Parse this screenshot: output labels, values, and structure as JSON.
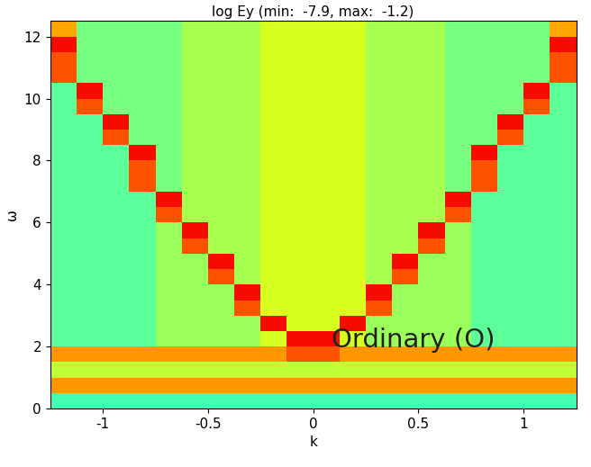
{
  "chart_data": {
    "type": "heatmap",
    "title": "log Ey (min:  -7.9, max:  -1.2)",
    "x_label": "k",
    "y_label": "ω",
    "annotation": "Ordinary (O)",
    "xlim": [
      -1.25,
      1.25
    ],
    "xticks": [
      -1,
      -0.5,
      0,
      0.5,
      1
    ],
    "ylim": [
      0,
      12.5
    ],
    "yticks": [
      0,
      2,
      4,
      6,
      8,
      10,
      12
    ],
    "color": "jet",
    "clim": [
      -7.9,
      -1.2
    ],
    "k_edges": [
      -1.25,
      -1.125,
      -1.0,
      -0.875,
      -0.75,
      -0.625,
      -0.5,
      -0.375,
      -0.25,
      -0.125,
      0,
      0.125,
      0.25,
      0.375,
      0.5,
      0.625,
      0.75,
      0.875,
      1.0,
      1.125,
      1.25
    ],
    "omega_edges": [
      0,
      0.5,
      1.0,
      1.5,
      2.0,
      2.5,
      3.0,
      3.5,
      4.0,
      4.5,
      5.0,
      5.5,
      6.0,
      6.5,
      7.0,
      7.5,
      8.0,
      8.5,
      9.0,
      9.5,
      10.0,
      10.5,
      11.0,
      11.5,
      12.0,
      12.5
    ],
    "cells": [
      [
        -5.0,
        -5.0,
        -5.0,
        -5.0,
        -5.0,
        -5.0,
        -5.0,
        -5.0,
        -5.0,
        -5.0,
        -5.0,
        -5.0,
        -5.0,
        -5.0,
        -5.0,
        -5.0,
        -5.0,
        -5.0,
        -5.0,
        -5.0
      ],
      [
        -2.9,
        -2.9,
        -2.9,
        -2.9,
        -2.9,
        -2.9,
        -2.9,
        -2.9,
        -2.9,
        -2.9,
        -2.9,
        -2.9,
        -2.9,
        -2.9,
        -2.9,
        -2.9,
        -2.9,
        -2.9,
        -2.9,
        -2.9
      ],
      [
        -4.0,
        -4.0,
        -4.0,
        -4.0,
        -4.0,
        -4.0,
        -4.0,
        -4.0,
        -4.0,
        -4.0,
        -4.0,
        -4.0,
        -4.0,
        -4.0,
        -4.0,
        -4.0,
        -4.0,
        -4.0,
        -4.0,
        -4.0
      ],
      [
        -2.9,
        -2.9,
        -2.9,
        -2.9,
        -2.9,
        -2.9,
        -2.9,
        -2.9,
        -2.9,
        -2.4,
        -2.4,
        -2.9,
        -2.9,
        -2.9,
        -2.9,
        -2.9,
        -2.9,
        -2.9,
        -2.9,
        -2.9
      ],
      [
        -4.8,
        -4.8,
        -4.8,
        -4.8,
        -4.3,
        -4.3,
        -4.3,
        -4.3,
        -3.8,
        -1.9,
        -1.9,
        -3.8,
        -4.3,
        -4.3,
        -4.3,
        -4.3,
        -4.8,
        -4.8,
        -4.8,
        -4.8
      ],
      [
        -4.8,
        -4.8,
        -4.8,
        -4.8,
        -4.3,
        -4.3,
        -4.3,
        -4.3,
        -1.9,
        -3.8,
        -3.8,
        -1.9,
        -4.3,
        -4.3,
        -4.3,
        -4.3,
        -4.8,
        -4.8,
        -4.8,
        -4.8
      ],
      [
        -4.8,
        -4.8,
        -4.8,
        -4.8,
        -4.3,
        -4.3,
        -4.3,
        -2.4,
        -3.8,
        -3.8,
        -3.8,
        -3.8,
        -2.4,
        -4.3,
        -4.3,
        -4.3,
        -4.8,
        -4.8,
        -4.8,
        -4.8
      ],
      [
        -4.8,
        -4.8,
        -4.8,
        -4.8,
        -4.3,
        -4.3,
        -4.3,
        -1.9,
        -3.8,
        -3.8,
        -3.8,
        -3.8,
        -1.9,
        -4.3,
        -4.3,
        -4.3,
        -4.8,
        -4.8,
        -4.8,
        -4.8
      ],
      [
        -4.8,
        -4.8,
        -4.8,
        -4.8,
        -4.3,
        -4.3,
        -2.4,
        -4.2,
        -3.8,
        -3.8,
        -3.8,
        -3.8,
        -4.2,
        -2.4,
        -4.3,
        -4.3,
        -4.8,
        -4.8,
        -4.8,
        -4.8
      ],
      [
        -4.8,
        -4.8,
        -4.8,
        -4.8,
        -4.3,
        -4.3,
        -1.9,
        -4.2,
        -3.8,
        -3.8,
        -3.8,
        -3.8,
        -4.2,
        -1.9,
        -4.3,
        -4.3,
        -4.8,
        -4.8,
        -4.8,
        -4.8
      ],
      [
        -4.8,
        -4.8,
        -4.8,
        -4.8,
        -4.3,
        -2.4,
        -4.2,
        -4.2,
        -3.8,
        -3.8,
        -3.8,
        -3.8,
        -4.2,
        -4.2,
        -2.4,
        -4.3,
        -4.8,
        -4.8,
        -4.8,
        -4.8
      ],
      [
        -4.8,
        -4.8,
        -4.8,
        -4.8,
        -4.3,
        -1.9,
        -4.2,
        -4.2,
        -3.8,
        -3.8,
        -3.8,
        -3.8,
        -4.2,
        -4.2,
        -1.9,
        -4.3,
        -4.8,
        -4.8,
        -4.8,
        -4.8
      ],
      [
        -4.8,
        -4.8,
        -4.8,
        -4.8,
        -2.4,
        -4.2,
        -4.2,
        -4.2,
        -3.8,
        -3.8,
        -3.8,
        -3.8,
        -4.2,
        -4.2,
        -4.2,
        -2.4,
        -4.8,
        -4.8,
        -4.8,
        -4.8
      ],
      [
        -4.8,
        -4.8,
        -4.8,
        -4.8,
        -1.9,
        -4.2,
        -4.2,
        -4.2,
        -3.8,
        -3.8,
        -3.8,
        -3.8,
        -4.2,
        -4.2,
        -4.2,
        -1.9,
        -4.8,
        -4.8,
        -4.8,
        -4.8
      ],
      [
        -4.8,
        -4.8,
        -4.8,
        -2.4,
        -4.6,
        -4.2,
        -4.2,
        -4.2,
        -3.8,
        -3.8,
        -3.8,
        -3.8,
        -4.2,
        -4.2,
        -4.2,
        -4.6,
        -2.4,
        -4.8,
        -4.8,
        -4.8
      ],
      [
        -4.8,
        -4.8,
        -4.8,
        -2.4,
        -4.6,
        -4.2,
        -4.2,
        -4.2,
        -3.8,
        -3.8,
        -3.8,
        -3.8,
        -4.2,
        -4.2,
        -4.2,
        -4.6,
        -2.4,
        -4.8,
        -4.8,
        -4.8
      ],
      [
        -4.8,
        -4.8,
        -4.8,
        -1.9,
        -4.6,
        -4.2,
        -4.2,
        -4.2,
        -3.8,
        -3.8,
        -3.8,
        -3.8,
        -4.2,
        -4.2,
        -4.2,
        -4.6,
        -1.9,
        -4.8,
        -4.8,
        -4.8
      ],
      [
        -4.8,
        -4.8,
        -2.4,
        -4.6,
        -4.6,
        -4.2,
        -4.2,
        -4.2,
        -3.8,
        -3.8,
        -3.8,
        -3.8,
        -4.2,
        -4.2,
        -4.2,
        -4.6,
        -4.6,
        -2.4,
        -4.8,
        -4.8
      ],
      [
        -4.8,
        -4.8,
        -1.9,
        -4.6,
        -4.6,
        -4.2,
        -4.2,
        -4.2,
        -3.8,
        -3.8,
        -3.8,
        -3.8,
        -4.2,
        -4.2,
        -4.2,
        -4.6,
        -4.6,
        -1.9,
        -4.8,
        -4.8
      ],
      [
        -4.8,
        -2.4,
        -4.6,
        -4.6,
        -4.6,
        -4.2,
        -4.2,
        -4.2,
        -3.8,
        -3.8,
        -3.8,
        -3.8,
        -4.2,
        -4.2,
        -4.2,
        -4.6,
        -4.6,
        -4.6,
        -2.4,
        -4.8
      ],
      [
        -4.8,
        -1.9,
        -4.6,
        -4.6,
        -4.6,
        -4.2,
        -4.2,
        -4.2,
        -3.8,
        -3.8,
        -3.8,
        -3.8,
        -4.2,
        -4.2,
        -4.2,
        -4.6,
        -4.6,
        -4.6,
        -1.9,
        -4.8
      ],
      [
        -2.4,
        -4.6,
        -4.6,
        -4.6,
        -4.6,
        -4.2,
        -4.2,
        -4.2,
        -3.8,
        -3.8,
        -3.8,
        -3.8,
        -4.2,
        -4.2,
        -4.2,
        -4.6,
        -4.6,
        -4.6,
        -4.6,
        -2.4
      ],
      [
        -2.4,
        -4.6,
        -4.6,
        -4.6,
        -4.6,
        -4.2,
        -4.2,
        -4.2,
        -3.8,
        -3.8,
        -3.8,
        -3.8,
        -4.2,
        -4.2,
        -4.2,
        -4.6,
        -4.6,
        -4.6,
        -4.6,
        -2.4
      ],
      [
        -1.9,
        -4.6,
        -4.6,
        -4.6,
        -4.6,
        -4.2,
        -4.2,
        -4.2,
        -3.8,
        -3.8,
        -3.8,
        -3.8,
        -4.2,
        -4.2,
        -4.2,
        -4.6,
        -4.6,
        -4.6,
        -4.6,
        -1.9
      ],
      [
        -3.0,
        -4.6,
        -4.6,
        -4.6,
        -4.6,
        -4.2,
        -4.2,
        -4.2,
        -3.8,
        -3.8,
        -3.8,
        -3.8,
        -4.2,
        -4.2,
        -4.2,
        -4.6,
        -4.6,
        -4.6,
        -4.6,
        -3.0
      ]
    ]
  }
}
